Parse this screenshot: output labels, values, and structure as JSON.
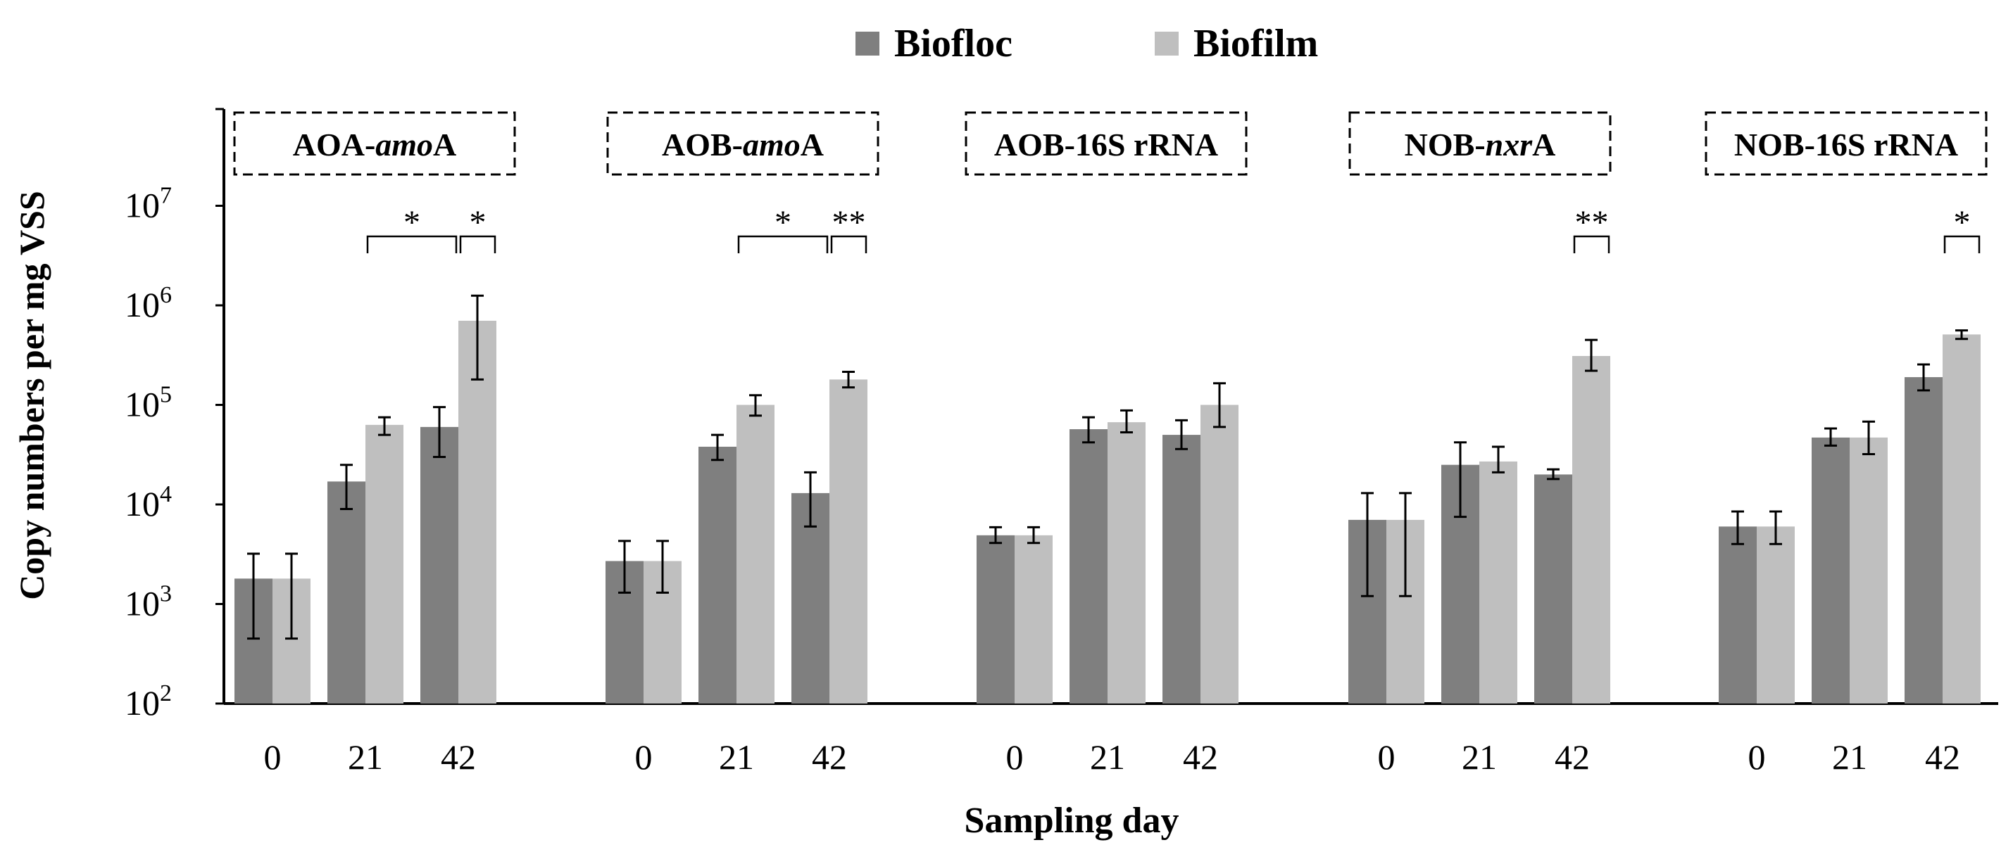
{
  "chart_data": {
    "type": "bar",
    "title": "",
    "xlabel": "Sampling day",
    "ylabel": "Copy numbers per mg VSS",
    "yscale": "log",
    "ylim": [
      100,
      100000000
    ],
    "yticks": [
      {
        "value": 100,
        "base": "10",
        "exp": "2"
      },
      {
        "value": 1000,
        "base": "10",
        "exp": "3"
      },
      {
        "value": 10000,
        "base": "10",
        "exp": "4"
      },
      {
        "value": 100000,
        "base": "10",
        "exp": "5"
      },
      {
        "value": 1000000,
        "base": "10",
        "exp": "6"
      },
      {
        "value": 10000000,
        "base": "10",
        "exp": "7"
      }
    ],
    "legend": {
      "placement": "top-center",
      "entries": [
        {
          "name": "Biofloc",
          "color": "#7f7f7f"
        },
        {
          "name": "Biofilm",
          "color": "#bfbfbf"
        }
      ]
    },
    "categories": [
      "0",
      "21",
      "42"
    ],
    "groups": [
      {
        "label_parts": [
          {
            "text": "AOA-",
            "italic": false
          },
          {
            "text": "amo",
            "italic": true
          },
          {
            "text": "A",
            "italic": false
          }
        ],
        "label_style": "dashed-box",
        "series": [
          {
            "name": "Biofloc",
            "values": [
              1800,
              17000,
              60000
            ],
            "err_low": [
              450,
              9000,
              30000
            ],
            "err_high": [
              3200,
              25000,
              95000
            ]
          },
          {
            "name": "Biofilm",
            "values": [
              1800,
              63000,
              700000
            ],
            "err_low": [
              450,
              50000,
              180000
            ],
            "err_high": [
              3200,
              75000,
              1250000
            ]
          }
        ],
        "significance": [
          {
            "between": [
              "21",
              "42"
            ],
            "label": "*"
          },
          {
            "between": [
              "42",
              "end"
            ],
            "label": "*"
          }
        ]
      },
      {
        "label_parts": [
          {
            "text": "AOB-",
            "italic": false
          },
          {
            "text": "amo",
            "italic": true
          },
          {
            "text": "A",
            "italic": false
          }
        ],
        "label_style": "dashed-box",
        "series": [
          {
            "name": "Biofloc",
            "values": [
              2700,
              38000,
              13000
            ],
            "err_low": [
              1300,
              28000,
              6000
            ],
            "err_high": [
              4300,
              50000,
              21000
            ]
          },
          {
            "name": "Biofilm",
            "values": [
              2700,
              100000,
              180000
            ],
            "err_low": [
              1300,
              78000,
              150000
            ],
            "err_high": [
              4300,
              125000,
              215000
            ]
          }
        ],
        "significance": [
          {
            "between": [
              "21",
              "42"
            ],
            "label": "*"
          },
          {
            "between": [
              "42",
              "end"
            ],
            "label": "**"
          }
        ]
      },
      {
        "label_parts": [
          {
            "text": "AOB-16S rRNA",
            "italic": false
          }
        ],
        "label_style": "dashed-box",
        "series": [
          {
            "name": "Biofloc",
            "values": [
              4900,
              57000,
              50000
            ],
            "err_low": [
              4100,
              42000,
              36000
            ],
            "err_high": [
              5900,
              75000,
              70000
            ]
          },
          {
            "name": "Biofilm",
            "values": [
              4900,
              67000,
              100000
            ],
            "err_low": [
              4100,
              53000,
              60000
            ],
            "err_high": [
              5900,
              88000,
              165000
            ]
          }
        ],
        "significance": []
      },
      {
        "label_parts": [
          {
            "text": "NOB-",
            "italic": false
          },
          {
            "text": "nxr",
            "italic": true
          },
          {
            "text": "A",
            "italic": false
          }
        ],
        "label_style": "dashed-box",
        "series": [
          {
            "name": "Biofloc",
            "values": [
              7000,
              25000,
              20000
            ],
            "err_low": [
              1200,
              7500,
              18000
            ],
            "err_high": [
              13000,
              42000,
              22500
            ]
          },
          {
            "name": "Biofilm",
            "values": [
              7000,
              27000,
              310000
            ],
            "err_low": [
              1200,
              21000,
              220000
            ],
            "err_high": [
              13000,
              38000,
              450000
            ]
          }
        ],
        "significance": [
          {
            "between": [
              "42",
              "end"
            ],
            "label": "**"
          }
        ]
      },
      {
        "label_parts": [
          {
            "text": "NOB-16S rRNA",
            "italic": false
          }
        ],
        "label_style": "dashed-box",
        "series": [
          {
            "name": "Biofloc",
            "values": [
              6000,
              47000,
              190000
            ],
            "err_low": [
              4000,
              39000,
              140000
            ],
            "err_high": [
              8500,
              58000,
              255000
            ]
          },
          {
            "name": "Biofilm",
            "values": [
              6000,
              47000,
              510000
            ],
            "err_low": [
              4000,
              32000,
              460000
            ],
            "err_high": [
              8500,
              68000,
              560000
            ]
          }
        ],
        "significance": [
          {
            "between": [
              "42",
              "end"
            ],
            "label": "*"
          }
        ]
      }
    ]
  }
}
